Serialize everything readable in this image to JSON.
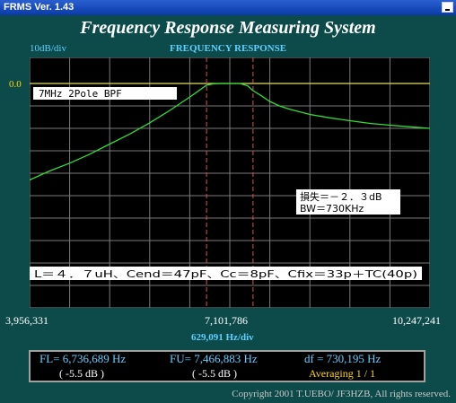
{
  "window": {
    "title": "FRMS  Ver. 1.43"
  },
  "header": {
    "title": "Frequency Response Measuring System"
  },
  "graph": {
    "scale_label": "10dB/div",
    "title": "FREQUENCY RESPONSE",
    "ref_label": "0.0",
    "x_start": "3,956,331",
    "x_center": "7,101,786",
    "x_end": "10,247,241",
    "x_unit": "629,091  Hz/div",
    "annotations": {
      "filter": "7MHz  2Pole  BPF",
      "loss": "損失＝－２．３dB",
      "bw": "BW＝730KHz",
      "params": "L＝４．７uH、Cend＝47pF、Cc＝8pF、Cfix＝33p＋TC(40p)"
    }
  },
  "measurements": {
    "fl": "FL= 6,736,689  Hz",
    "fl_db": "( -5.5 dB )",
    "fu": "FU= 7,466,883  Hz",
    "fu_db": "( -5.5 dB )",
    "df": "df = 730,195  Hz",
    "averaging": "Averaging   1 / 1"
  },
  "footer": {
    "copyright": "Copyright 2001 T.UEBO/ JF3HZB, All rights reserved."
  },
  "chart_data": {
    "type": "line",
    "xlabel": "629,091  Hz/div",
    "ylabel": "10dB/div",
    "x_range": [
      3956331,
      10247241
    ],
    "y_range_divisions": [
      -10,
      0
    ],
    "markers": [
      6736689,
      7466883
    ],
    "series": [
      {
        "name": "",
        "color": "#33dd33",
        "x": [
          3956331,
          4270000,
          4585000,
          4900000,
          5215000,
          5530000,
          5845000,
          6160000,
          6475000,
          6600000,
          6736689,
          6850000,
          6950000,
          7101786,
          7260000,
          7380000,
          7466883,
          7600000,
          7730000,
          7880000,
          8045000,
          8360000,
          8675000,
          8990000,
          9305000,
          9620000,
          9935000,
          10247241
        ],
        "y": [
          -43,
          -39,
          -35.5,
          -31.5,
          -27,
          -22.5,
          -17.5,
          -12,
          -6,
          -3.5,
          -0.7,
          -0.1,
          0,
          0,
          0,
          -1,
          -3.2,
          -5.5,
          -8,
          -10,
          -11.5,
          -13.8,
          -15.3,
          -16.6,
          -17.8,
          -18.6,
          -19.3,
          -20
        ]
      }
    ]
  }
}
